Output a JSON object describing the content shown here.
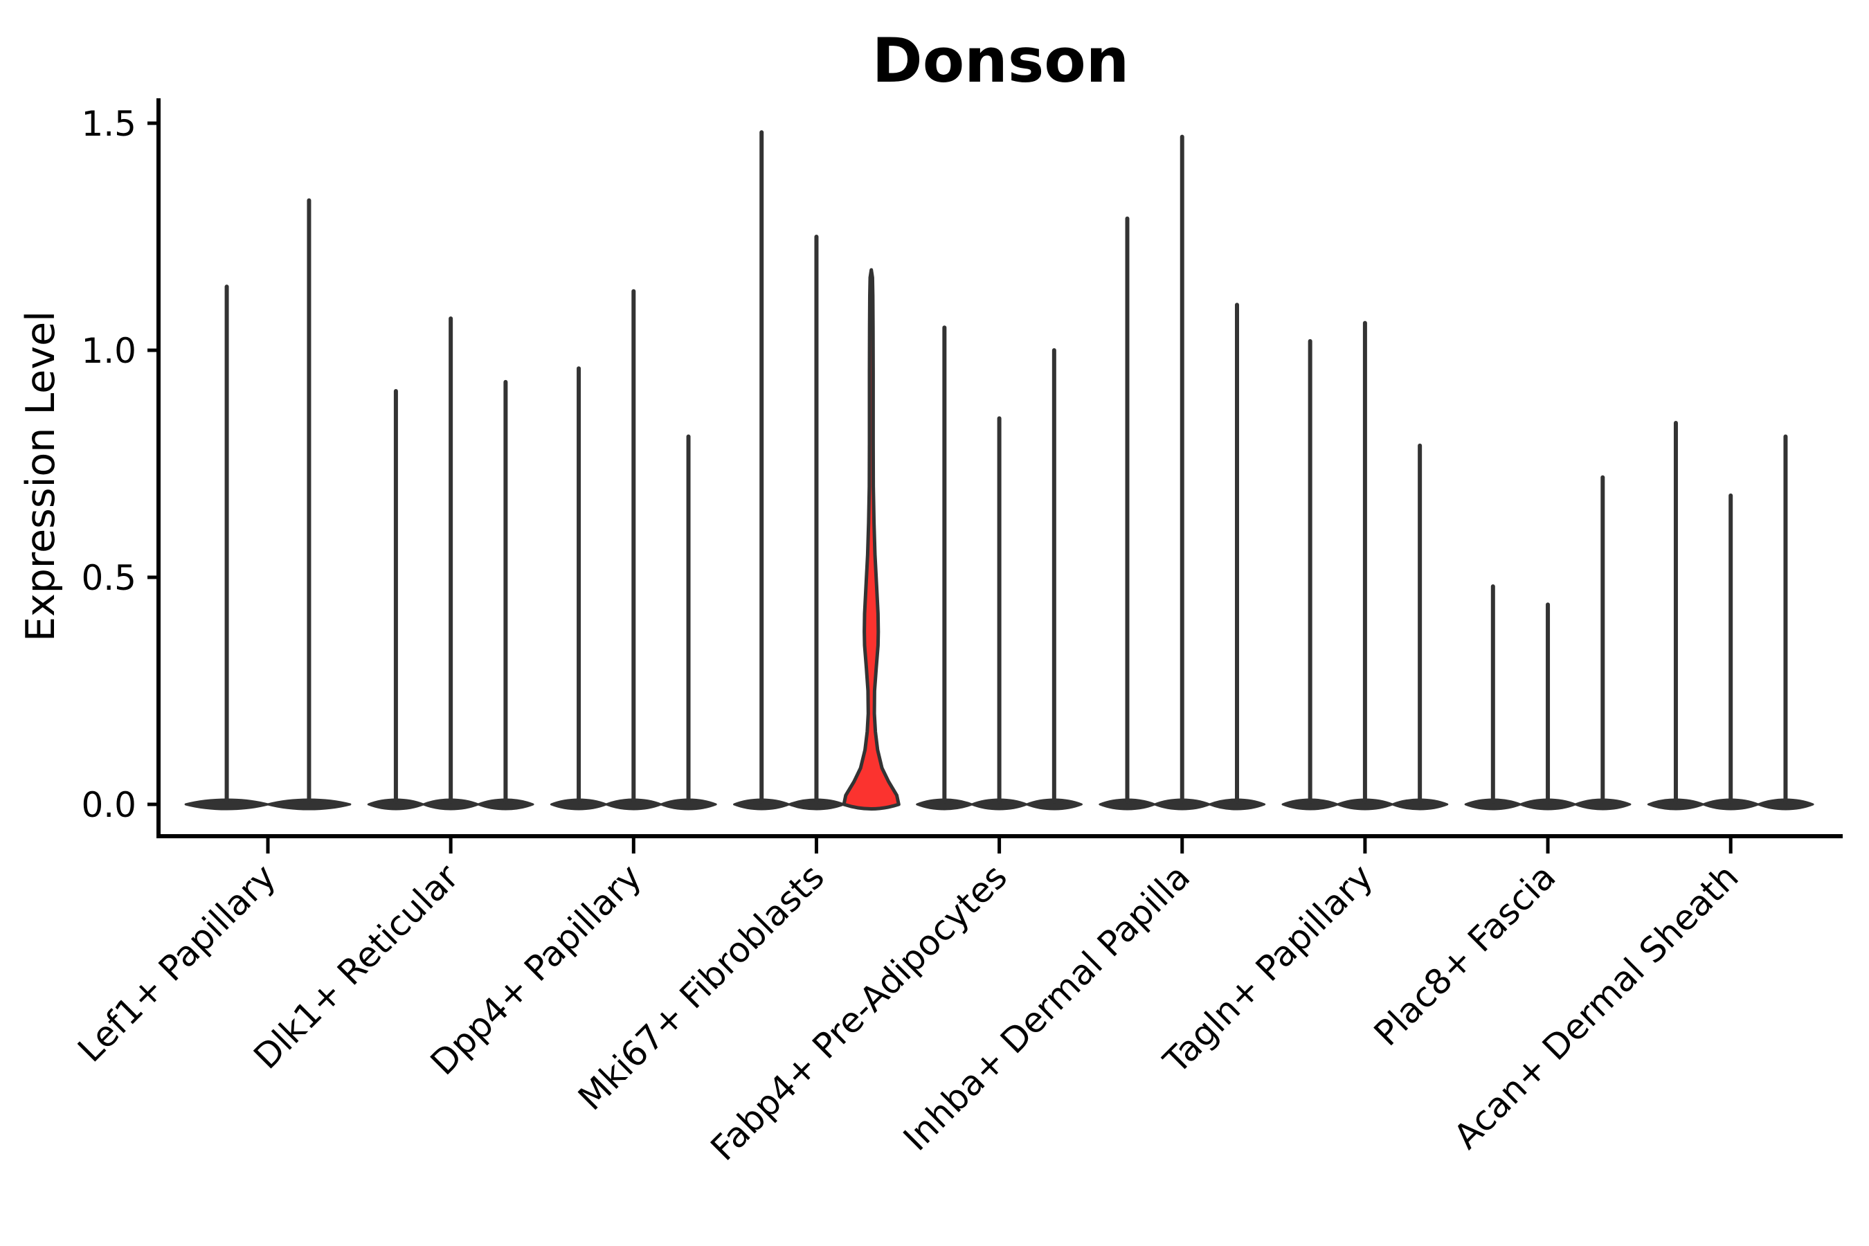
{
  "title": "Donson",
  "y_axis": {
    "label": "Expression Level",
    "ticks": [
      {
        "value": 0.0,
        "label": "0.0"
      },
      {
        "value": 0.5,
        "label": "0.5"
      },
      {
        "value": 1.0,
        "label": "1.0"
      },
      {
        "value": 1.5,
        "label": "1.5"
      }
    ]
  },
  "colors": {
    "axis": "#000000",
    "violin_outline": "#333333",
    "highlight_fill": "#fb332f",
    "background": "#ffffff",
    "text": "#000000"
  },
  "chart_data": {
    "type": "violin",
    "title": "Donson",
    "xlabel": "",
    "ylabel": "Expression Level",
    "ylim": [
      0,
      1.55
    ],
    "yticks": [
      0.0,
      0.5,
      1.0,
      1.5
    ],
    "grid": false,
    "legend": "none",
    "x_tick_rotation_deg": 45,
    "categories": [
      "Lef1+ Papillary",
      "Dlk1+ Reticular",
      "Dpp4+ Papillary",
      "Mki67+ Fibroblasts",
      "Fabp4+ Pre-Adipocytes",
      "Inhba+ Dermal Papilla",
      "Tagln+ Papillary",
      "Plac8+ Fascia",
      "Acan+ Dermal Sheath"
    ],
    "groups": [
      {
        "category": "Lef1+ Papillary",
        "violins": [
          {
            "max_expression": 1.14
          },
          {
            "max_expression": 1.33
          }
        ]
      },
      {
        "category": "Dlk1+ Reticular",
        "violins": [
          {
            "max_expression": 0.91
          },
          {
            "max_expression": 1.07
          },
          {
            "max_expression": 0.93
          }
        ]
      },
      {
        "category": "Dpp4+ Papillary",
        "violins": [
          {
            "max_expression": 0.96
          },
          {
            "max_expression": 1.13
          },
          {
            "max_expression": 0.81
          }
        ]
      },
      {
        "category": "Mki67+ Fibroblasts",
        "violins": [
          {
            "max_expression": 1.48
          },
          {
            "max_expression": 1.25
          },
          {
            "max_expression": 1.18,
            "highlight": true
          }
        ]
      },
      {
        "category": "Fabp4+ Pre-Adipocytes",
        "violins": [
          {
            "max_expression": 1.05
          },
          {
            "max_expression": 0.85
          },
          {
            "max_expression": 1.0
          }
        ]
      },
      {
        "category": "Inhba+ Dermal Papilla",
        "violins": [
          {
            "max_expression": 1.29
          },
          {
            "max_expression": 1.47
          },
          {
            "max_expression": 1.1
          }
        ]
      },
      {
        "category": "Tagln+ Papillary",
        "violins": [
          {
            "max_expression": 1.02
          },
          {
            "max_expression": 1.06
          },
          {
            "max_expression": 0.79
          }
        ]
      },
      {
        "category": "Plac8+ Fascia",
        "violins": [
          {
            "max_expression": 0.48
          },
          {
            "max_expression": 0.44
          },
          {
            "max_expression": 0.72
          }
        ]
      },
      {
        "category": "Acan+ Dermal Sheath",
        "violins": [
          {
            "max_expression": 0.84
          },
          {
            "max_expression": 0.68
          },
          {
            "max_expression": 0.81
          }
        ]
      }
    ],
    "highlight_violin": {
      "category": "Mki67+ Fibroblasts",
      "position_in_group": 3,
      "max_expression": 1.18,
      "fill": "#fb332f",
      "density_profile": [
        [
          0.0,
          1.0
        ],
        [
          0.02,
          0.93
        ],
        [
          0.05,
          0.63
        ],
        [
          0.08,
          0.39
        ],
        [
          0.12,
          0.23
        ],
        [
          0.16,
          0.15
        ],
        [
          0.2,
          0.11
        ],
        [
          0.25,
          0.12
        ],
        [
          0.3,
          0.18
        ],
        [
          0.35,
          0.245
        ],
        [
          0.38,
          0.256
        ],
        [
          0.42,
          0.244
        ],
        [
          0.48,
          0.195
        ],
        [
          0.55,
          0.134
        ],
        [
          0.62,
          0.098
        ],
        [
          0.7,
          0.073
        ],
        [
          0.8,
          0.068
        ],
        [
          0.95,
          0.068
        ],
        [
          1.05,
          0.063
        ],
        [
          1.12,
          0.055
        ],
        [
          1.16,
          0.044
        ],
        [
          1.177,
          0.0
        ]
      ]
    }
  }
}
